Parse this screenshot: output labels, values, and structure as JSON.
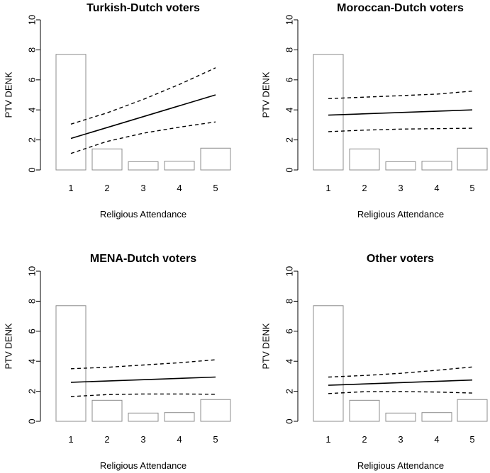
{
  "chart_data": [
    {
      "type": "bar+line",
      "title": "Turkish-Dutch voters",
      "xlabel": "Religious Attendance",
      "ylabel": "PTV DENK",
      "categories": [
        "1",
        "2",
        "3",
        "4",
        "5"
      ],
      "ylim": [
        0,
        10
      ],
      "yticks": [
        "0",
        "2",
        "4",
        "6",
        "8",
        "10"
      ],
      "bars": [
        7.7,
        1.4,
        0.55,
        0.58,
        1.45
      ],
      "fit": {
        "x": [
          1,
          5
        ],
        "y": [
          2.1,
          5.0
        ]
      },
      "ci_upper": {
        "x": [
          1,
          2,
          3,
          4,
          5
        ],
        "y": [
          3.05,
          3.8,
          4.7,
          5.7,
          6.8
        ]
      },
      "ci_lower": {
        "x": [
          1,
          2,
          3,
          4,
          5
        ],
        "y": [
          1.1,
          1.9,
          2.45,
          2.85,
          3.2
        ]
      }
    },
    {
      "type": "bar+line",
      "title": "Moroccan-Dutch voters",
      "xlabel": "Religious Attendance",
      "ylabel": "PTV DENK",
      "categories": [
        "1",
        "2",
        "3",
        "4",
        "5"
      ],
      "ylim": [
        0,
        10
      ],
      "yticks": [
        "0",
        "2",
        "4",
        "6",
        "8",
        "10"
      ],
      "bars": [
        7.7,
        1.4,
        0.55,
        0.58,
        1.45
      ],
      "fit": {
        "x": [
          1,
          5
        ],
        "y": [
          3.65,
          4.0
        ]
      },
      "ci_upper": {
        "x": [
          1,
          2,
          3,
          4,
          5
        ],
        "y": [
          4.75,
          4.85,
          4.95,
          5.05,
          5.25
        ]
      },
      "ci_lower": {
        "x": [
          1,
          2,
          3,
          4,
          5
        ],
        "y": [
          2.55,
          2.65,
          2.72,
          2.75,
          2.78
        ]
      }
    },
    {
      "type": "bar+line",
      "title": "MENA-Dutch voters",
      "xlabel": "Religious Attendance",
      "ylabel": "PTV DENK",
      "categories": [
        "1",
        "2",
        "3",
        "4",
        "5"
      ],
      "ylim": [
        0,
        10
      ],
      "yticks": [
        "0",
        "2",
        "4",
        "6",
        "8",
        "10"
      ],
      "bars": [
        7.7,
        1.4,
        0.55,
        0.58,
        1.45
      ],
      "fit": {
        "x": [
          1,
          5
        ],
        "y": [
          2.6,
          2.95
        ]
      },
      "ci_upper": {
        "x": [
          1,
          2,
          3,
          4,
          5
        ],
        "y": [
          3.5,
          3.6,
          3.75,
          3.9,
          4.1
        ]
      },
      "ci_lower": {
        "x": [
          1,
          2,
          3,
          4,
          5
        ],
        "y": [
          1.65,
          1.78,
          1.82,
          1.82,
          1.8
        ]
      }
    },
    {
      "type": "bar+line",
      "title": "Other voters",
      "xlabel": "Religious Attendance",
      "ylabel": "PTV DENK",
      "categories": [
        "1",
        "2",
        "3",
        "4",
        "5"
      ],
      "ylim": [
        0,
        10
      ],
      "yticks": [
        "0",
        "2",
        "4",
        "6",
        "8",
        "10"
      ],
      "bars": [
        7.7,
        1.4,
        0.55,
        0.58,
        1.45
      ],
      "fit": {
        "x": [
          1,
          5
        ],
        "y": [
          2.4,
          2.75
        ]
      },
      "ci_upper": {
        "x": [
          1,
          2,
          3,
          4,
          5
        ],
        "y": [
          2.95,
          3.05,
          3.2,
          3.4,
          3.62
        ]
      },
      "ci_lower": {
        "x": [
          1,
          2,
          3,
          4,
          5
        ],
        "y": [
          1.85,
          1.97,
          1.98,
          1.95,
          1.88
        ]
      }
    }
  ]
}
